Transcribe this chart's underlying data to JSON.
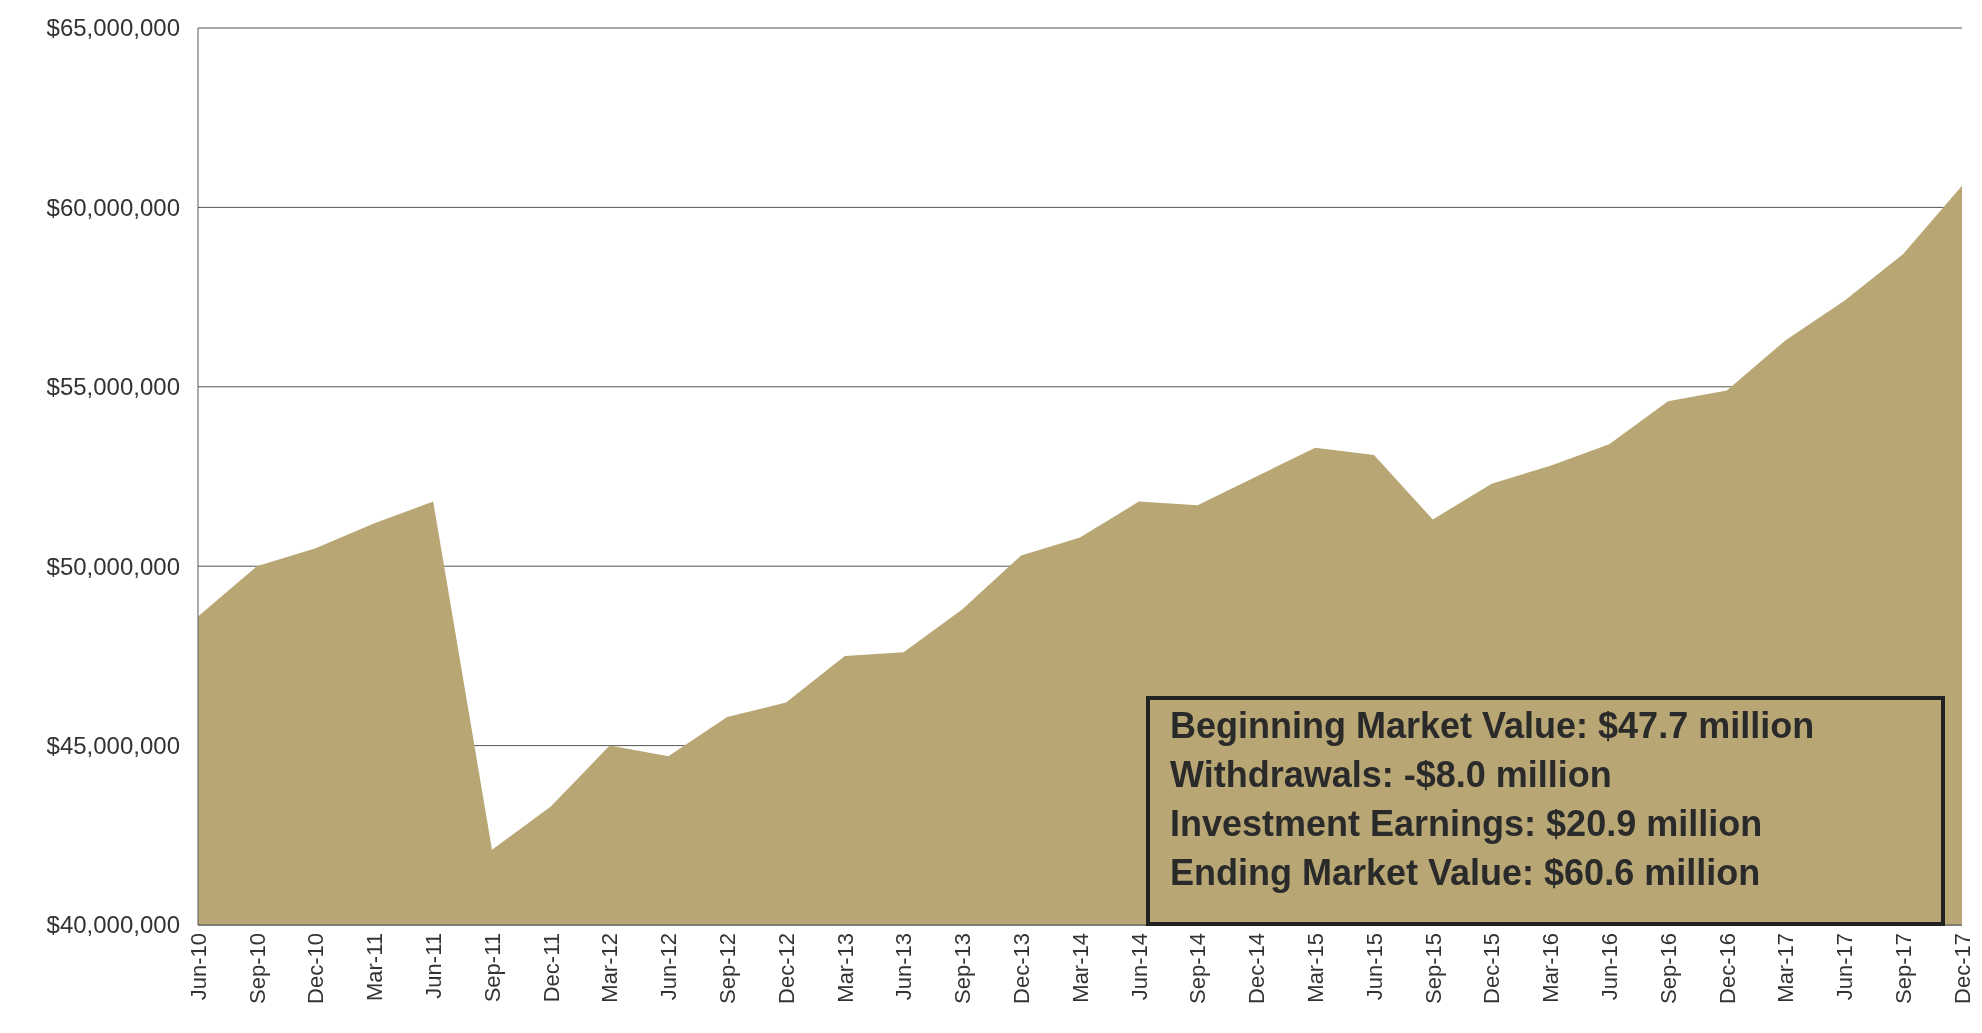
{
  "chart_data": {
    "type": "area",
    "categories": [
      "Jun-10",
      "Sep-10",
      "Dec-10",
      "Mar-11",
      "Jun-11",
      "Sep-11",
      "Dec-11",
      "Mar-12",
      "Jun-12",
      "Sep-12",
      "Dec-12",
      "Mar-13",
      "Jun-13",
      "Sep-13",
      "Dec-13",
      "Mar-14",
      "Jun-14",
      "Sep-14",
      "Dec-14",
      "Mar-15",
      "Jun-15",
      "Sep-15",
      "Dec-15",
      "Mar-16",
      "Jun-16",
      "Sep-16",
      "Dec-16",
      "Mar-17",
      "Jun-17",
      "Sep-17",
      "Dec-17"
    ],
    "series": [
      {
        "color": "#b8a774",
        "values": [
          48600000,
          50000000,
          50500000,
          51200000,
          51800000,
          42100000,
          43300000,
          45000000,
          44700000,
          45800000,
          46200000,
          47500000,
          47600000,
          48800000,
          50300000,
          50800000,
          51800000,
          51700000,
          52500000,
          53300000,
          53100000,
          51300000,
          52300000,
          52800000,
          53400000,
          54600000,
          54900000,
          56300000,
          57400000,
          58700000,
          60600000
        ]
      }
    ],
    "ylim": [
      40000000,
      65000000
    ],
    "yticks": [
      {
        "value": 40000000,
        "label": "$40,000,000"
      },
      {
        "value": 45000000,
        "label": "$45,000,000"
      },
      {
        "value": 50000000,
        "label": "$50,000,000"
      },
      {
        "value": 55000000,
        "label": "$55,000,000"
      },
      {
        "value": 60000000,
        "label": "$60,000,000"
      },
      {
        "value": 65000000,
        "label": "$65,000,000"
      }
    ],
    "grid": "y",
    "annotations": [
      "Beginning Market Value: $47.7 million",
      "Withdrawals: -$8.0 million",
      "Investment Earnings: $20.9 million",
      "Ending Market Value: $60.6 million"
    ]
  }
}
